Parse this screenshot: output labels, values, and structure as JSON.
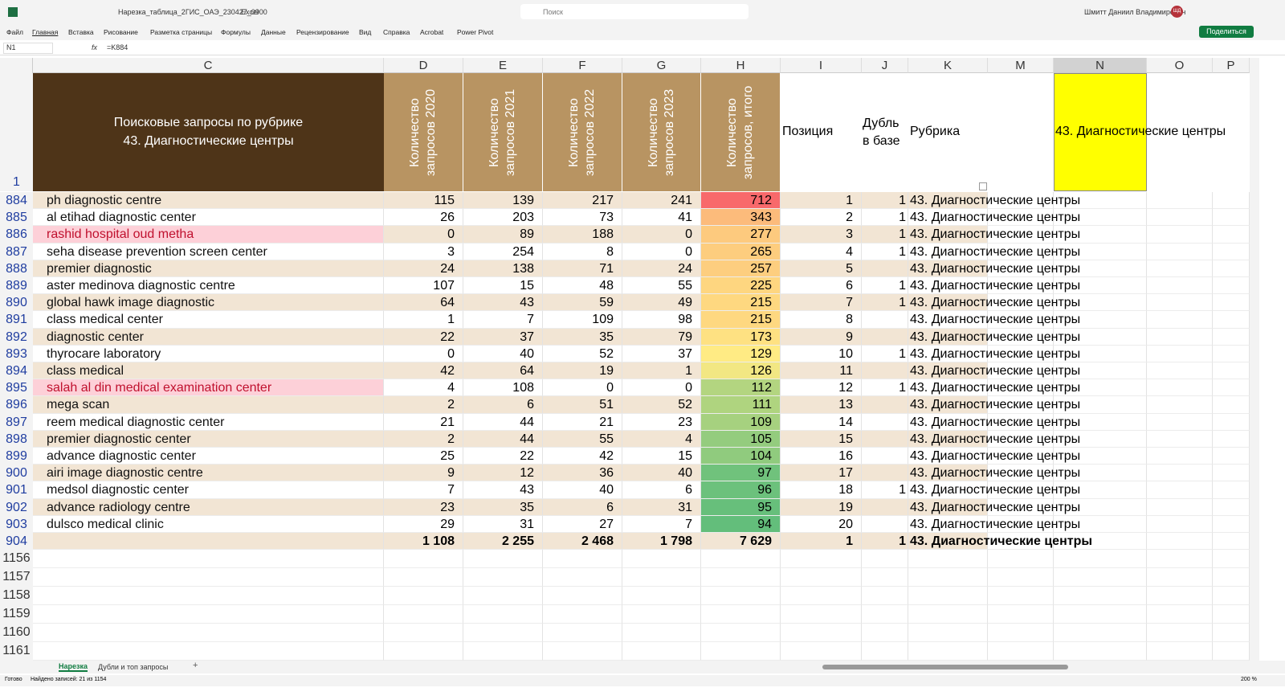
{
  "app": {
    "file": "Нарезка_таблица_2ГИС_ОАЭ_230427_0900",
    "name": "Excel",
    "search": "Поиск",
    "user": "Шмитт Даниил Владимирович",
    "initials": "ШД",
    "share": "Поделиться"
  },
  "menu": [
    "Файл",
    "Главная",
    "Вставка",
    "Рисование",
    "Разметка страницы",
    "Формулы",
    "Данные",
    "Рецензирование",
    "Вид",
    "Справка",
    "Acrobat",
    "Power Pivot"
  ],
  "formula_bar": {
    "name_box": "N1",
    "fx": "fx",
    "formula": "=K884"
  },
  "sheet": {
    "columns": [
      "C",
      "D",
      "E",
      "F",
      "G",
      "H",
      "I",
      "J",
      "K",
      "M",
      "N",
      "O",
      "P"
    ],
    "header": {
      "row": 1,
      "title_lines": [
        "Поисковые запросы по рубрике",
        "43. Диагностические центры"
      ],
      "d": "Количество запросов 2020",
      "e": "Количество запросов 2021",
      "f": "Количество запросов 2022",
      "g": "Количество запросов 2023",
      "h": "Количество запросов, итого",
      "i": "Позиция",
      "j": "Дубль в базе",
      "k": "Рубрика",
      "n": "43. Диагностические центры"
    },
    "rows": [
      [
        884,
        "ph diagnostic centre",
        115,
        139,
        217,
        241,
        712,
        1,
        1,
        "43. Диагностические центры"
      ],
      [
        885,
        "al etihad diagnostic center",
        26,
        203,
        73,
        41,
        343,
        2,
        1,
        "43. Диагностические центры"
      ],
      [
        886,
        "rashid hospital oud metha",
        0,
        89,
        188,
        0,
        277,
        3,
        1,
        "43. Диагностические центры"
      ],
      [
        887,
        "seha disease prevention screen center",
        3,
        254,
        8,
        0,
        265,
        4,
        1,
        "43. Диагностические центры"
      ],
      [
        888,
        "premier diagnostic",
        24,
        138,
        71,
        24,
        257,
        5,
        null,
        "43. Диагностические центры"
      ],
      [
        889,
        "aster medinova diagnostic centre",
        107,
        15,
        48,
        55,
        225,
        6,
        1,
        "43. Диагностические центры"
      ],
      [
        890,
        "global hawk image diagnostic",
        64,
        43,
        59,
        49,
        215,
        7,
        1,
        "43. Диагностические центры"
      ],
      [
        891,
        "class medical center",
        1,
        7,
        109,
        98,
        215,
        8,
        null,
        "43. Диагностические центры"
      ],
      [
        892,
        "diagnostic center",
        22,
        37,
        35,
        79,
        173,
        9,
        null,
        "43. Диагностические центры"
      ],
      [
        893,
        "thyrocare laboratory",
        0,
        40,
        52,
        37,
        129,
        10,
        1,
        "43. Диагностические центры"
      ],
      [
        894,
        "class medical",
        42,
        64,
        19,
        1,
        126,
        11,
        null,
        "43. Диагностические центры"
      ],
      [
        895,
        "salah al din medical examination center",
        4,
        108,
        0,
        0,
        112,
        12,
        1,
        "43. Диагностические центры"
      ],
      [
        896,
        "mega scan",
        2,
        6,
        51,
        52,
        111,
        13,
        null,
        "43. Диагностические центры"
      ],
      [
        897,
        "reem medical diagnostic center",
        21,
        44,
        21,
        23,
        109,
        14,
        null,
        "43. Диагностические центры"
      ],
      [
        898,
        "premier diagnostic center",
        2,
        44,
        55,
        4,
        105,
        15,
        null,
        "43. Диагностические центры"
      ],
      [
        899,
        "advance diagnostic center",
        25,
        22,
        42,
        15,
        104,
        16,
        null,
        "43. Диагностические центры"
      ],
      [
        900,
        "airi image diagnostic centre",
        9,
        12,
        36,
        40,
        97,
        17,
        null,
        "43. Диагностические центры"
      ],
      [
        901,
        "medsol diagnostic center",
        7,
        43,
        40,
        6,
        96,
        18,
        1,
        "43. Диагностические центры"
      ],
      [
        902,
        "advance radiology centre",
        23,
        35,
        6,
        31,
        95,
        19,
        null,
        "43. Диагностические центры"
      ],
      [
        903,
        "dulsco medical clinic",
        29,
        31,
        27,
        7,
        94,
        20,
        null,
        "43. Диагностические центры"
      ]
    ],
    "highlighted_rows": [
      2,
      11
    ],
    "total": [
      904,
      null,
      "1 108",
      "2 255",
      "2 468",
      "1 798",
      "7 629",
      1,
      1,
      "43. Диагностические центры"
    ],
    "empty_rows": [
      1156,
      1157,
      1158,
      1159,
      1160,
      1161
    ]
  },
  "sheets": [
    "Нарезка",
    "Дубли и топ запросы"
  ],
  "status": {
    "ready": "Готово",
    "found": "Найдено записей: 21 из 1154",
    "zoom": "200 %"
  }
}
